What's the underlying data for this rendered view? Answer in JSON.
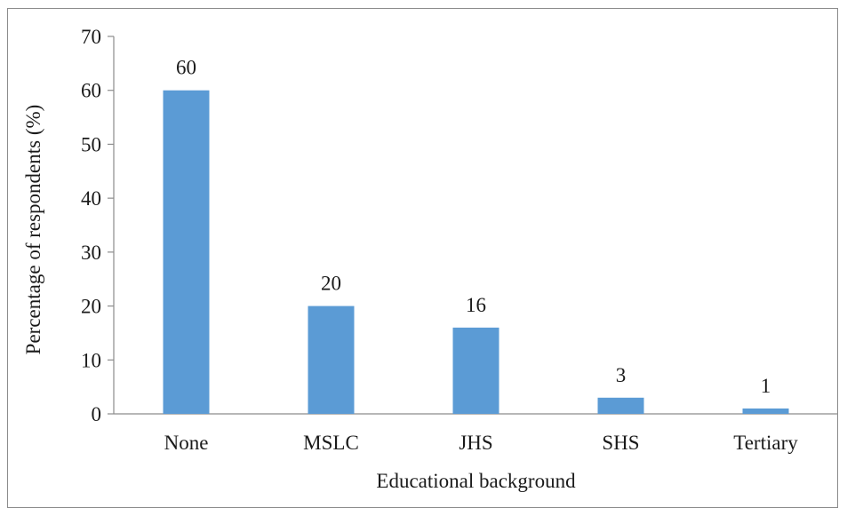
{
  "chart_data": {
    "type": "bar",
    "title": "",
    "xlabel": "Educational background",
    "ylabel": "Percentage of respondents (%)",
    "categories": [
      "None",
      "MSLC",
      "JHS",
      "SHS",
      "Tertiary"
    ],
    "values": [
      60,
      20,
      16,
      3,
      1
    ],
    "data_labels": [
      "60",
      "20",
      "16",
      "3",
      "1"
    ],
    "ylim": [
      0,
      70
    ],
    "yticks": [
      0,
      10,
      20,
      30,
      40,
      50,
      60,
      70
    ],
    "grid": false,
    "legend": "none",
    "bar_color": "#5b9bd5"
  }
}
